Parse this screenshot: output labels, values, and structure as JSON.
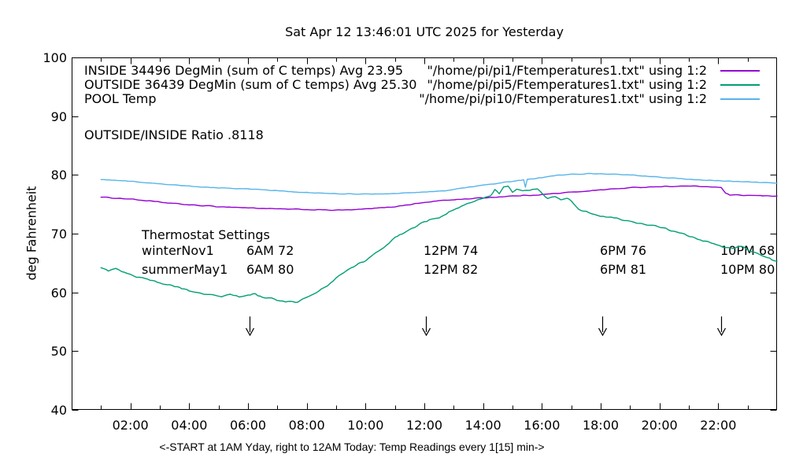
{
  "title": "Sat Apr 12 13:46:01 UTC 2025 for Yesterday",
  "legend": {
    "rows": [
      {
        "label": "INSIDE 34496 DegMin (sum of C temps) Avg 23.95",
        "source": "\"/home/pi/pi1/Ftemperatures1.txt\" using 1:2",
        "series": "INSIDE"
      },
      {
        "label": "OUTSIDE 36439 DegMin (sum of C temps) Avg 25.30",
        "source": "\"/home/pi/pi5/Ftemperatures1.txt\" using 1:2",
        "series": "OUTSIDE"
      },
      {
        "label": "POOL Temp",
        "source": "\"/home/pi/pi10/Ftemperatures1.txt\" using 1:2",
        "series": "POOL"
      }
    ]
  },
  "annotations": {
    "ratio": "OUTSIDE/INSIDE Ratio .8118",
    "thermostat": {
      "title": "Thermostat Settings",
      "rows": [
        [
          "winterNov1",
          "6AM 72",
          "12PM 74",
          "6PM 76",
          "10PM 68"
        ],
        [
          "summerMay1",
          "6AM 80",
          "12PM 82",
          "6PM 81",
          "10PM 80"
        ]
      ]
    }
  },
  "chart_data": {
    "type": "line",
    "title": "Sat Apr 12 13:46:01 UTC 2025 for Yesterday",
    "xlabel": "<-START at 1AM Yday, right to 12AM Today:  Temp Readings every 1[15] min->",
    "ylabel": "deg Fahrenheit",
    "xlim": [
      0,
      24
    ],
    "ylim": [
      40,
      100
    ],
    "grid": false,
    "legend_position": "top-left-inside",
    "x_ticks": {
      "major": [
        {
          "v": 2,
          "label": "02:00"
        },
        {
          "v": 4,
          "label": "04:00"
        },
        {
          "v": 6,
          "label": "06:00"
        },
        {
          "v": 8,
          "label": "08:00"
        },
        {
          "v": 10,
          "label": "10:00"
        },
        {
          "v": 12,
          "label": "12:00"
        },
        {
          "v": 14,
          "label": "14:00"
        },
        {
          "v": 16,
          "label": "16:00"
        },
        {
          "v": 18,
          "label": "18:00"
        },
        {
          "v": 20,
          "label": "20:00"
        },
        {
          "v": 22,
          "label": "22:00"
        }
      ],
      "minor": [
        1,
        3,
        5,
        7,
        9,
        11,
        13,
        15,
        17,
        19,
        21,
        23
      ]
    },
    "y_ticks": [
      40,
      50,
      60,
      70,
      80,
      90,
      100
    ],
    "series": [
      {
        "name": "INSIDE",
        "color": "#9400d3",
        "jitter": 0.1,
        "points": [
          [
            1,
            76.2
          ],
          [
            2,
            75.9
          ],
          [
            3,
            75.35
          ],
          [
            4,
            74.9
          ],
          [
            5,
            74.6
          ],
          [
            6,
            74.4
          ],
          [
            7,
            74.2
          ],
          [
            8,
            74.1
          ],
          [
            9,
            74.0
          ],
          [
            9.6,
            74.05
          ],
          [
            10.3,
            74.3
          ],
          [
            11,
            74.6
          ],
          [
            11.7,
            75.1
          ],
          [
            12.5,
            75.6
          ],
          [
            13.2,
            75.85
          ],
          [
            14,
            76.1
          ],
          [
            15,
            76.4
          ],
          [
            16,
            76.65
          ],
          [
            17,
            77.05
          ],
          [
            18,
            77.45
          ],
          [
            19,
            77.8
          ],
          [
            19.8,
            78.0
          ],
          [
            21,
            78.1
          ],
          [
            21.8,
            77.95
          ],
          [
            22.1,
            77.8
          ],
          [
            22.25,
            76.9
          ],
          [
            22.4,
            76.55
          ],
          [
            23,
            76.5
          ],
          [
            23.6,
            76.45
          ],
          [
            24,
            76.4
          ]
        ]
      },
      {
        "name": "OUTSIDE",
        "color": "#009e73",
        "jitter": 0.22,
        "points": [
          [
            1,
            64.2
          ],
          [
            1.25,
            63.7
          ],
          [
            1.5,
            64.0
          ],
          [
            1.8,
            63.4
          ],
          [
            2.1,
            62.8
          ],
          [
            2.5,
            62.4
          ],
          [
            3,
            61.6
          ],
          [
            3.5,
            61.05
          ],
          [
            4,
            60.35
          ],
          [
            4.4,
            59.9
          ],
          [
            4.8,
            59.6
          ],
          [
            5.1,
            59.35
          ],
          [
            5.4,
            59.65
          ],
          [
            5.7,
            59.2
          ],
          [
            6,
            59.45
          ],
          [
            6.25,
            59.7
          ],
          [
            6.5,
            59.05
          ],
          [
            6.8,
            58.9
          ],
          [
            7.1,
            58.6
          ],
          [
            7.45,
            58.3
          ],
          [
            7.7,
            58.45
          ],
          [
            7.95,
            59.0
          ],
          [
            8.3,
            59.9
          ],
          [
            8.7,
            61.2
          ],
          [
            9.1,
            62.9
          ],
          [
            9.6,
            64.4
          ],
          [
            10.1,
            65.8
          ],
          [
            10.6,
            67.6
          ],
          [
            11,
            69.3
          ],
          [
            11.5,
            70.8
          ],
          [
            12,
            72.0
          ],
          [
            12.5,
            72.7
          ],
          [
            13,
            74.0
          ],
          [
            13.6,
            75.3
          ],
          [
            14,
            76.0
          ],
          [
            14.25,
            76.4
          ],
          [
            14.4,
            77.5
          ],
          [
            14.55,
            76.7
          ],
          [
            14.7,
            77.8
          ],
          [
            14.85,
            77.9
          ],
          [
            15,
            77.1
          ],
          [
            15.15,
            77.6
          ],
          [
            15.35,
            77.2
          ],
          [
            15.6,
            77.35
          ],
          [
            15.85,
            77.7
          ],
          [
            16.05,
            76.5
          ],
          [
            16.2,
            75.95
          ],
          [
            16.45,
            76.2
          ],
          [
            16.65,
            75.9
          ],
          [
            16.85,
            76.1
          ],
          [
            17,
            75.6
          ],
          [
            17.25,
            74.3
          ],
          [
            17.6,
            73.5
          ],
          [
            18,
            73.0
          ],
          [
            18.45,
            72.7
          ],
          [
            18.9,
            72.2
          ],
          [
            19.4,
            71.7
          ],
          [
            19.95,
            71.3
          ],
          [
            20.4,
            70.5
          ],
          [
            20.85,
            69.9
          ],
          [
            21.3,
            69.0
          ],
          [
            21.75,
            68.5
          ],
          [
            22.15,
            67.8
          ],
          [
            22.55,
            67.6
          ],
          [
            22.8,
            67.75
          ],
          [
            23.1,
            67.0
          ],
          [
            23.5,
            66.3
          ],
          [
            24,
            65.3
          ]
        ]
      },
      {
        "name": "POOL",
        "color": "#56b4e9",
        "jitter": 0.08,
        "points": [
          [
            1,
            79.2
          ],
          [
            2,
            78.9
          ],
          [
            3,
            78.5
          ],
          [
            4,
            78.1
          ],
          [
            5,
            77.8
          ],
          [
            6,
            77.6
          ],
          [
            7,
            77.3
          ],
          [
            8,
            77.0
          ],
          [
            8.7,
            76.85
          ],
          [
            9.5,
            76.75
          ],
          [
            10.5,
            76.75
          ],
          [
            11.3,
            76.9
          ],
          [
            12,
            77.05
          ],
          [
            12.7,
            77.3
          ],
          [
            13.3,
            77.8
          ],
          [
            14,
            78.2
          ],
          [
            14.7,
            78.7
          ],
          [
            15.2,
            79.05
          ],
          [
            15.38,
            79.15
          ],
          [
            15.44,
            77.9
          ],
          [
            15.5,
            79.2
          ],
          [
            16,
            79.55
          ],
          [
            16.5,
            79.95
          ],
          [
            17,
            80.1
          ],
          [
            17.6,
            80.2
          ],
          [
            18.2,
            80.15
          ],
          [
            19,
            80.0
          ],
          [
            19.6,
            79.75
          ],
          [
            20.2,
            79.55
          ],
          [
            21,
            79.25
          ],
          [
            21.8,
            79.05
          ],
          [
            22.5,
            78.9
          ],
          [
            23.2,
            78.75
          ],
          [
            24,
            78.6
          ]
        ]
      }
    ],
    "arrows": {
      "times": [
        6.05,
        12.05,
        18.05,
        22.1
      ],
      "y_top": 55.9,
      "y_tip": 52.7
    },
    "colors": {
      "axis": "#000000",
      "background": "#ffffff"
    }
  }
}
